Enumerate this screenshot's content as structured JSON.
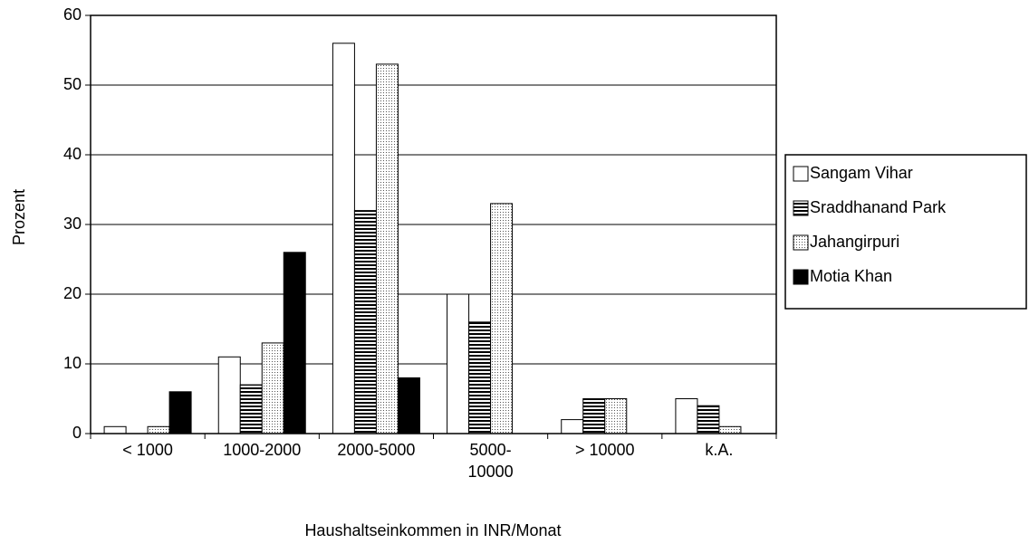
{
  "chart_data": {
    "type": "bar",
    "categories": [
      "< 1000",
      "1000-2000",
      "2000-5000",
      "5000-10000",
      "> 10000",
      "k.A."
    ],
    "series": [
      {
        "name": "Sangam Vihar",
        "color": "#ffffff",
        "pattern": "none",
        "values": [
          1,
          11,
          56,
          20,
          2,
          5
        ]
      },
      {
        "name": "Sraddhanand Park",
        "color": "#ffffff",
        "pattern": "horizontal-lines",
        "values": [
          0,
          7,
          32,
          16,
          5,
          4
        ]
      },
      {
        "name": "Jahangirpuri",
        "color": "#ffffff",
        "pattern": "dots",
        "values": [
          1,
          13,
          53,
          33,
          5,
          1
        ]
      },
      {
        "name": "Motia Khan",
        "color": "#000000",
        "pattern": "none",
        "values": [
          6,
          26,
          8,
          0,
          0,
          0
        ]
      }
    ],
    "xlabel": "Haushaltseinkommen in INR/Monat",
    "ylabel": "Prozent",
    "ylim": [
      0,
      60
    ],
    "yticks": [
      0,
      10,
      20,
      30,
      40,
      50,
      60
    ],
    "grid": true,
    "legend": "right"
  }
}
